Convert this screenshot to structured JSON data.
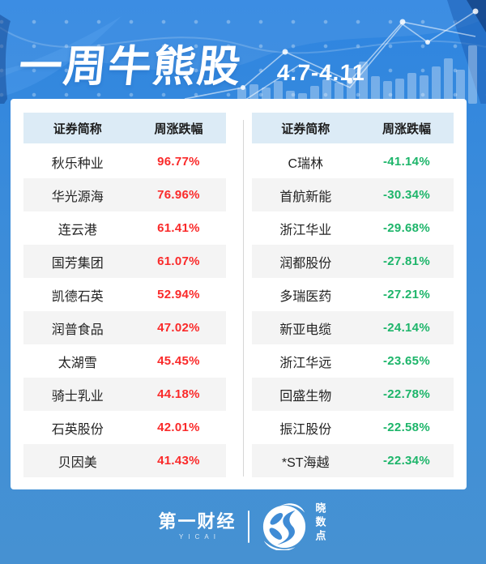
{
  "header": {
    "title": "一周牛熊股",
    "date_range": "4.7-4.11"
  },
  "tables": {
    "gainers": {
      "columns": [
        "证券简称",
        "周涨跌幅"
      ],
      "rows": [
        {
          "name": "秋乐种业",
          "change": "96.77%"
        },
        {
          "name": "华光源海",
          "change": "76.96%"
        },
        {
          "name": "连云港",
          "change": "61.41%"
        },
        {
          "name": "国芳集团",
          "change": "61.07%"
        },
        {
          "name": "凯德石英",
          "change": "52.94%"
        },
        {
          "name": "润普食品",
          "change": "47.02%"
        },
        {
          "name": "太湖雪",
          "change": "45.45%"
        },
        {
          "name": "骑士乳业",
          "change": "44.18%"
        },
        {
          "name": "石英股份",
          "change": "42.01%"
        },
        {
          "name": "贝因美",
          "change": "41.43%"
        }
      ]
    },
    "losers": {
      "columns": [
        "证券简称",
        "周涨跌幅"
      ],
      "rows": [
        {
          "name": "C瑞林",
          "change": "-41.14%"
        },
        {
          "name": "首航新能",
          "change": "-30.34%"
        },
        {
          "name": "浙江华业",
          "change": "-29.68%"
        },
        {
          "name": "润都股份",
          "change": "-27.81%"
        },
        {
          "name": "多瑞医药",
          "change": "-27.21%"
        },
        {
          "name": "新亚电缆",
          "change": "-24.14%"
        },
        {
          "name": "浙江华远",
          "change": "-23.65%"
        },
        {
          "name": "回盛生物",
          "change": "-22.78%"
        },
        {
          "name": "振江股份",
          "change": "-22.58%"
        },
        {
          "name": "*ST海越",
          "change": "-22.34%"
        }
      ]
    }
  },
  "footer": {
    "brand": "第一财经",
    "brand_sub": "YICAI",
    "logo_monogram": "S",
    "datapoint_brand": "晓数点"
  },
  "colors": {
    "gain": "#fa2a2a",
    "loss": "#1db56a",
    "header_band": "#dcebf6",
    "accent_blue": "#3f8bd5",
    "background_blue": "#3a8bda"
  },
  "chart_data": [
    {
      "type": "table",
      "title": "一周牛熊股 4.7-4.11 — 涨幅榜",
      "columns": [
        "证券简称",
        "周涨跌幅"
      ],
      "rows": [
        [
          "秋乐种业",
          96.77
        ],
        [
          "华光源海",
          76.96
        ],
        [
          "连云港",
          61.41
        ],
        [
          "国芳集团",
          61.07
        ],
        [
          "凯德石英",
          52.94
        ],
        [
          "润普食品",
          47.02
        ],
        [
          "太湖雪",
          45.45
        ],
        [
          "骑士乳业",
          44.18
        ],
        [
          "石英股份",
          42.01
        ],
        [
          "贝因美",
          41.43
        ]
      ],
      "value_unit": "percent"
    },
    {
      "type": "table",
      "title": "一周牛熊股 4.7-4.11 — 跌幅榜",
      "columns": [
        "证券简称",
        "周涨跌幅"
      ],
      "rows": [
        [
          "C瑞林",
          -41.14
        ],
        [
          "首航新能",
          -30.34
        ],
        [
          "浙江华业",
          -29.68
        ],
        [
          "润都股份",
          -27.81
        ],
        [
          "多瑞医药",
          -27.21
        ],
        [
          "新亚电缆",
          -24.14
        ],
        [
          "浙江华远",
          -23.65
        ],
        [
          "回盛生物",
          -22.78
        ],
        [
          "振江股份",
          -22.58
        ],
        [
          "*ST海越",
          -22.34
        ]
      ],
      "value_unit": "percent"
    }
  ]
}
